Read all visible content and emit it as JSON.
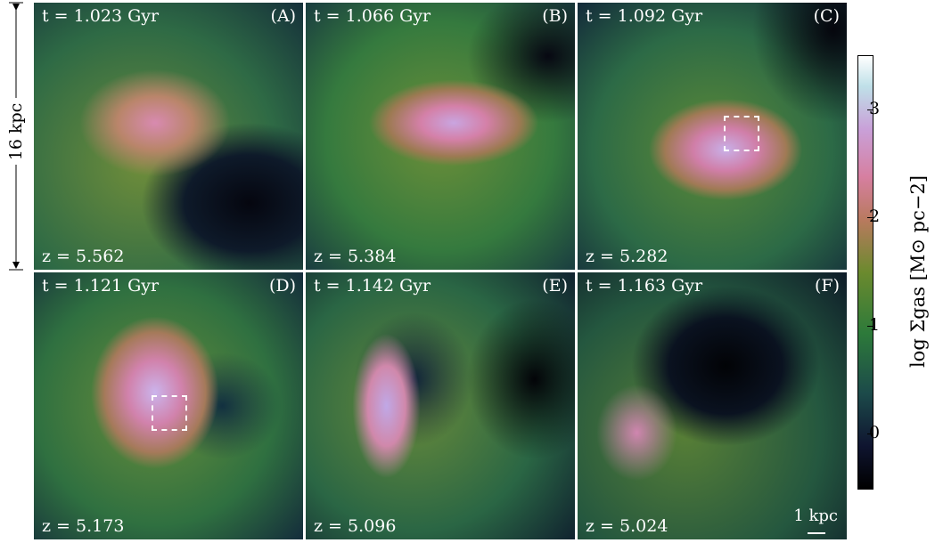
{
  "scale_label": "16 kpc",
  "panels": [
    {
      "time": "t = 1.023 Gyr",
      "label": "(A)",
      "redshift": "z = 5.562"
    },
    {
      "time": "t = 1.066 Gyr",
      "label": "(B)",
      "redshift": "z = 5.384"
    },
    {
      "time": "t = 1.092 Gyr",
      "label": "(C)",
      "redshift": "z = 5.282"
    },
    {
      "time": "t = 1.121 Gyr",
      "label": "(D)",
      "redshift": "z = 5.173"
    },
    {
      "time": "t = 1.142 Gyr",
      "label": "(E)",
      "redshift": "z = 5.096"
    },
    {
      "time": "t = 1.163 Gyr",
      "label": "(F)",
      "redshift": "z = 5.024"
    }
  ],
  "scale_bar": "1 kpc",
  "colorbar": {
    "label": "log Σgas [M⊙ pc−2]",
    "lim": [
      -0.5,
      3.5
    ],
    "ticks": [
      0,
      1,
      2,
      3
    ]
  }
}
